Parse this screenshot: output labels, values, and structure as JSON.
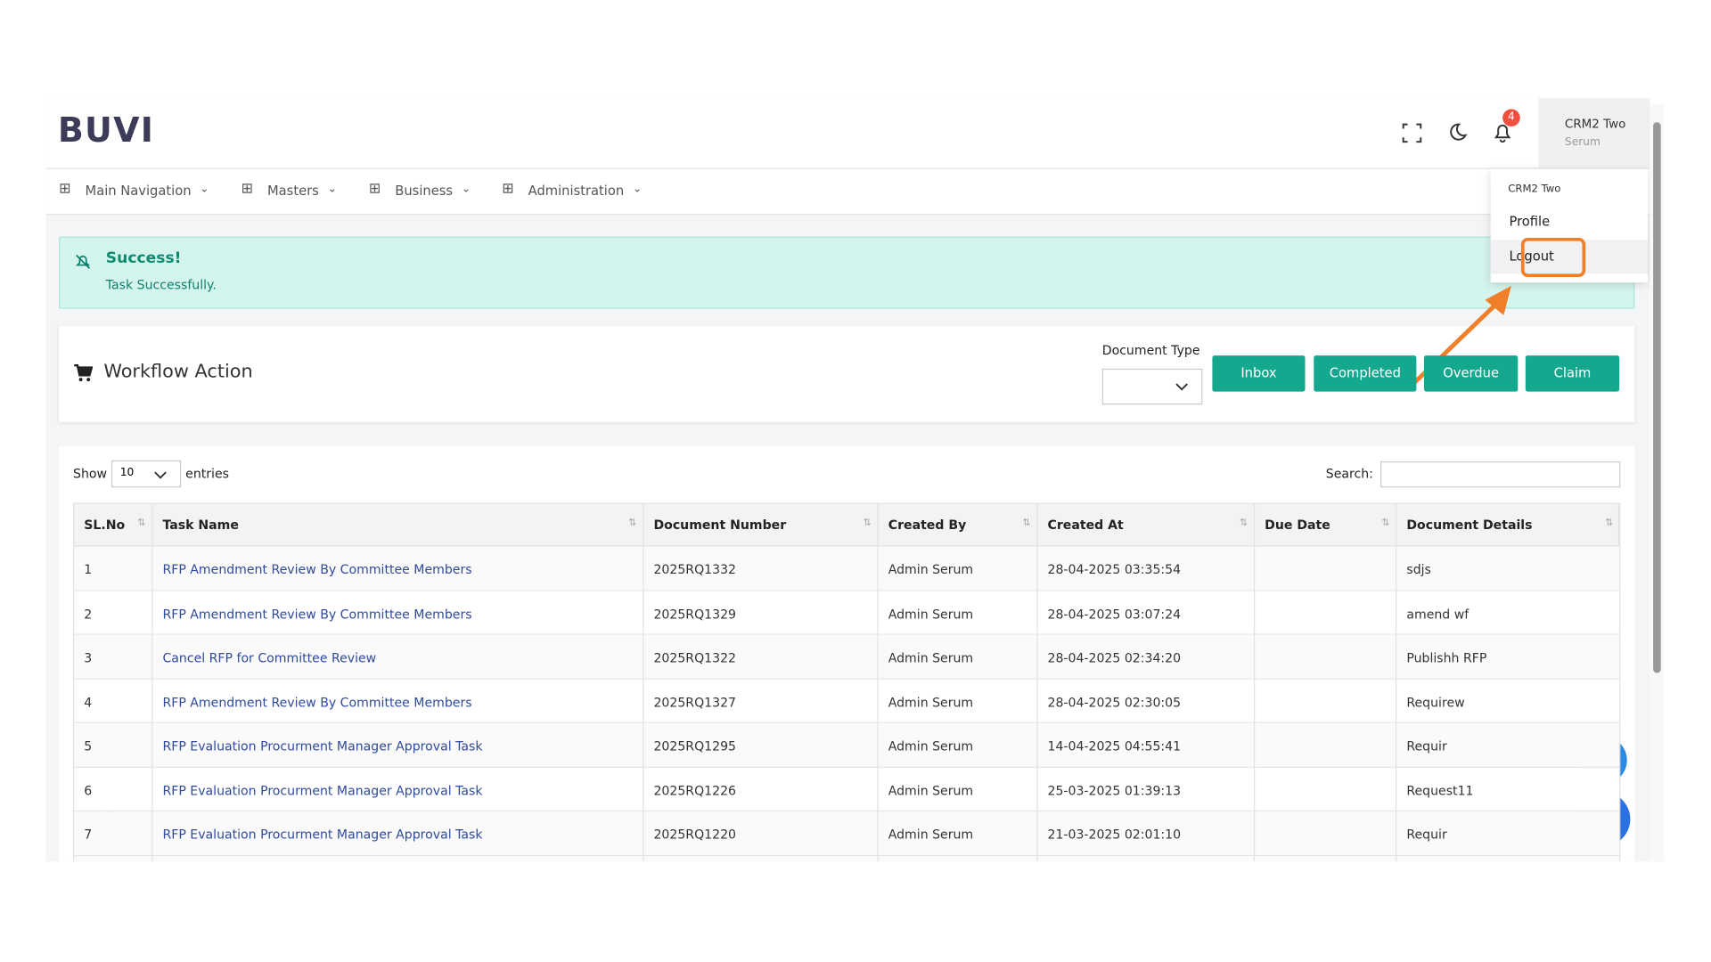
{
  "header": {
    "logo": "BUVI",
    "notification_count": "4",
    "user_name": "CRM2 Two",
    "user_role": "Serum"
  },
  "dropdown": {
    "name": "CRM2 Two",
    "items": [
      "Profile",
      "Logout"
    ]
  },
  "nav": [
    "Main Navigation",
    "Masters",
    "Business",
    "Administration"
  ],
  "alert": {
    "title": "Success!",
    "message": "Task Successfully."
  },
  "panel": {
    "title": "Workflow Action",
    "document_type_label": "Document Type",
    "buttons": [
      "Inbox",
      "Completed",
      "Overdue",
      "Claim"
    ]
  },
  "table": {
    "show": "Show",
    "page_size": "10",
    "entries": "entries",
    "search": "Search:",
    "columns": [
      "SL.No",
      "Task Name",
      "Document Number",
      "Created By",
      "Created At",
      "Due Date",
      "Document Details"
    ],
    "rows": [
      [
        "1",
        "RFP Amendment Review By Committee Members",
        "2025RQ1332",
        "Admin Serum",
        "28-04-2025 03:35:54",
        "",
        "sdjs"
      ],
      [
        "2",
        "RFP Amendment Review By Committee Members",
        "2025RQ1329",
        "Admin Serum",
        "28-04-2025 03:07:24",
        "",
        "amend wf"
      ],
      [
        "3",
        "Cancel RFP for Committee Review",
        "2025RQ1322",
        "Admin Serum",
        "28-04-2025 02:34:20",
        "",
        "Publishh RFP"
      ],
      [
        "4",
        "RFP Amendment Review By Committee Members",
        "2025RQ1327",
        "Admin Serum",
        "28-04-2025 02:30:05",
        "",
        "Requirew"
      ],
      [
        "5",
        "RFP Evaluation Procurment Manager Approval Task",
        "2025RQ1295",
        "Admin Serum",
        "14-04-2025 04:55:41",
        "",
        "Requir"
      ],
      [
        "6",
        "RFP Evaluation Procurment Manager Approval Task",
        "2025RQ1226",
        "Admin Serum",
        "25-03-2025 01:39:13",
        "",
        "Request11"
      ],
      [
        "7",
        "RFP Evaluation Procurment Manager Approval Task",
        "2025RQ1220",
        "Admin Serum",
        "21-03-2025 02:01:10",
        "",
        "Requir"
      ]
    ]
  }
}
